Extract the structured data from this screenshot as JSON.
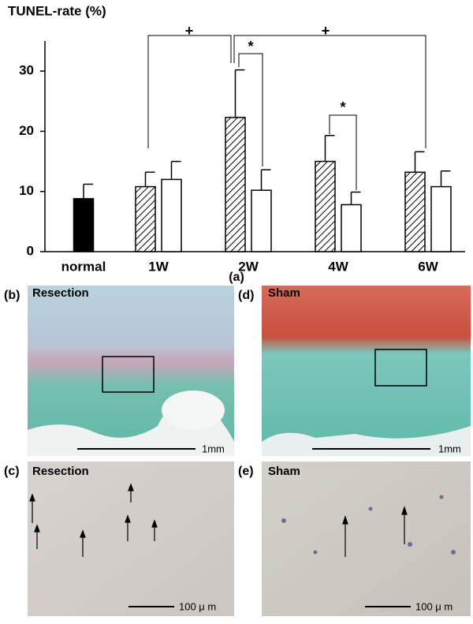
{
  "chart_data": {
    "type": "bar",
    "y_label": "TUNEL-rate (%)",
    "caption": "(a)",
    "categories": [
      "normal",
      "1W",
      "2W",
      "4W",
      "6W"
    ],
    "series": [
      {
        "color": "#000000",
        "pattern": "solid",
        "values": [
          8.8,
          null,
          null,
          null,
          null
        ],
        "errors": [
          2.4,
          null,
          null,
          null,
          null
        ]
      },
      {
        "color": "#000000",
        "pattern": "hatch",
        "values": [
          null,
          10.8,
          22.3,
          15.0,
          13.2
        ],
        "errors": [
          null,
          2.4,
          7.9,
          4.3,
          3.4
        ]
      },
      {
        "color": "#ffffff",
        "pattern": "solid",
        "values": [
          null,
          12.0,
          10.2,
          7.8,
          10.8
        ],
        "errors": [
          null,
          3.0,
          3.4,
          2.1,
          2.6
        ]
      }
    ],
    "ylim": [
      0,
      35
    ],
    "yticks": [
      0,
      10,
      20,
      30
    ],
    "annotations": [
      "+",
      "*",
      "+",
      "*"
    ]
  },
  "panels": [
    {
      "label": "(b)",
      "title": "Resection",
      "scale": "1mm"
    },
    {
      "label": "(d)",
      "title": "Sham",
      "scale": "1mm"
    },
    {
      "label": "(c)",
      "title": "Resection",
      "scale": "100 μ m"
    },
    {
      "label": "(e)",
      "title": "Sham",
      "scale": "100 μ m"
    }
  ]
}
